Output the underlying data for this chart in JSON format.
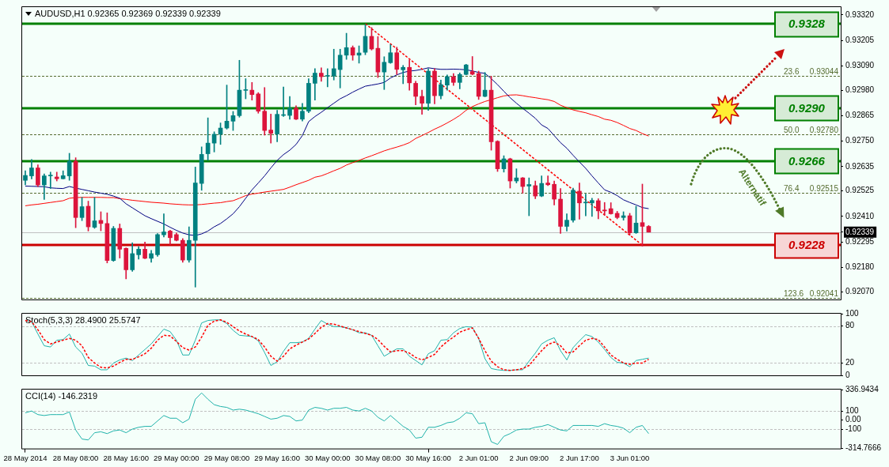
{
  "chart_data": [
    {
      "type": "candlestick",
      "title": "AUDUSD,H1 0.92365 0.92369 0.92339 0.92339",
      "categories": [
        null,
        null,
        null,
        null,
        null,
        null,
        null,
        null,
        null,
        null,
        null,
        null,
        null,
        null,
        null,
        null,
        null,
        null,
        null,
        null,
        null,
        null,
        null,
        null,
        null,
        null,
        null,
        null,
        null,
        null,
        null,
        null,
        null,
        null,
        null,
        null,
        null,
        null,
        null,
        null,
        null,
        null,
        null,
        null,
        null,
        null,
        null,
        null,
        null,
        null,
        null,
        null,
        null,
        null,
        null,
        null,
        null,
        null,
        null,
        null,
        null,
        null,
        null,
        null,
        null,
        null,
        null,
        null,
        null,
        null,
        null,
        null,
        null,
        null,
        null,
        null,
        null,
        null,
        null,
        null,
        null,
        null,
        null,
        null,
        null,
        null,
        null,
        null,
        null,
        null,
        null,
        null,
        null,
        null,
        null,
        null,
        null,
        null,
        null,
        null
      ],
      "ohlc": [
        [
          0.92573,
          0.92616,
          0.92553,
          0.92595
        ],
        [
          0.92593,
          0.92667,
          0.92579,
          0.92629
        ],
        [
          0.92629,
          0.92643,
          0.92545,
          0.92552
        ],
        [
          0.92552,
          0.92602,
          0.92487,
          0.92593
        ],
        [
          0.92593,
          0.9261,
          0.92536,
          0.92593
        ],
        [
          0.92588,
          0.9261,
          0.9257,
          0.9258
        ],
        [
          0.9258,
          0.92616,
          0.92579,
          0.92594
        ],
        [
          0.92593,
          0.92695,
          0.92573,
          0.92659
        ],
        [
          0.92659,
          0.92675,
          0.92359,
          0.92405
        ],
        [
          0.92405,
          0.92496,
          0.92391,
          0.92454
        ],
        [
          0.92456,
          0.92479,
          0.92344,
          0.92363
        ],
        [
          0.92361,
          0.92496,
          0.92356,
          0.9239
        ],
        [
          0.92392,
          0.92431,
          0.92345,
          0.92378
        ],
        [
          0.92378,
          0.92426,
          0.922,
          0.92211
        ],
        [
          0.92211,
          0.92365,
          0.92207,
          0.92356
        ],
        [
          0.92356,
          0.92376,
          0.92222,
          0.92262
        ],
        [
          0.92266,
          0.92268,
          0.92128,
          0.92169
        ],
        [
          0.92169,
          0.92291,
          0.92162,
          0.92242
        ],
        [
          0.92237,
          0.92274,
          0.92217,
          0.92262
        ],
        [
          0.92262,
          0.92294,
          0.92219,
          0.92221
        ],
        [
          0.92221,
          0.92257,
          0.92203,
          0.92242
        ],
        [
          0.92237,
          0.92333,
          0.9223,
          0.92328
        ],
        [
          0.92327,
          0.92422,
          0.92317,
          0.9234
        ],
        [
          0.92344,
          0.92348,
          0.92282,
          0.92314
        ],
        [
          0.92328,
          0.92335,
          0.92299,
          0.92302
        ],
        [
          0.92302,
          0.9231,
          0.92203,
          0.92213
        ],
        [
          0.92213,
          0.92363,
          0.92203,
          0.92302
        ],
        [
          0.92302,
          0.92633,
          0.92091,
          0.92561
        ],
        [
          0.92559,
          0.92724,
          0.92528,
          0.9269
        ],
        [
          0.92693,
          0.92855,
          0.92663,
          0.92741
        ],
        [
          0.92741,
          0.92792,
          0.92701,
          0.92781
        ],
        [
          0.92781,
          0.92832,
          0.92735,
          0.92809
        ],
        [
          0.92809,
          0.93003,
          0.92804,
          0.9284
        ],
        [
          0.9284,
          0.92884,
          0.92798,
          0.92865
        ],
        [
          0.92865,
          0.93115,
          0.92858,
          0.9298
        ],
        [
          0.92979,
          0.93032,
          0.92941,
          0.92979
        ],
        [
          0.9298,
          0.93015,
          0.92935,
          0.9296
        ],
        [
          0.92963,
          0.92969,
          0.92876,
          0.92885
        ],
        [
          0.92885,
          0.92992,
          0.92777,
          0.92798
        ],
        [
          0.928,
          0.92872,
          0.92741,
          0.92785
        ],
        [
          0.92782,
          0.92889,
          0.92747,
          0.92871
        ],
        [
          0.92866,
          0.92994,
          0.92861,
          0.92866
        ],
        [
          0.92866,
          0.92952,
          0.92849,
          0.92899
        ],
        [
          0.92899,
          0.9291,
          0.92847,
          0.92849
        ],
        [
          0.92849,
          0.9292,
          0.92841,
          0.92885
        ],
        [
          0.92885,
          0.93032,
          0.92878,
          0.93011
        ],
        [
          0.93011,
          0.93077,
          0.92935,
          0.93057
        ],
        [
          0.93057,
          0.93081,
          0.9302,
          0.93041
        ],
        [
          0.93043,
          0.93077,
          0.92995,
          0.93043
        ],
        [
          0.93044,
          0.93165,
          0.93026,
          0.93077
        ],
        [
          0.93073,
          0.93165,
          0.9299,
          0.93138
        ],
        [
          0.93138,
          0.93237,
          0.93119,
          0.93172
        ],
        [
          0.93172,
          0.9318,
          0.93115,
          0.93138
        ],
        [
          0.93138,
          0.9318,
          0.93102,
          0.93148
        ],
        [
          0.93151,
          0.93277,
          0.9314,
          0.93223
        ],
        [
          0.93223,
          0.93263,
          0.93161,
          0.93166
        ],
        [
          0.93169,
          0.93222,
          0.93037,
          0.93062
        ],
        [
          0.93062,
          0.93131,
          0.92983,
          0.93106
        ],
        [
          0.93104,
          0.93186,
          0.93101,
          0.93149
        ],
        [
          0.93149,
          0.93174,
          0.93051,
          0.93074
        ],
        [
          0.93072,
          0.93092,
          0.93009,
          0.93083
        ],
        [
          0.93083,
          0.93117,
          0.9298,
          0.93013
        ],
        [
          0.93011,
          0.9302,
          0.92914,
          0.92952
        ],
        [
          0.92952,
          0.9298,
          0.92871,
          0.92921
        ],
        [
          0.92921,
          0.93077,
          0.92889,
          0.93066
        ],
        [
          0.93066,
          0.93077,
          0.92918,
          0.92955
        ],
        [
          0.92955,
          0.93026,
          0.92941,
          0.93005
        ],
        [
          0.93003,
          0.93049,
          0.9298,
          0.93041
        ],
        [
          0.93041,
          0.93055,
          0.93001,
          0.93015
        ],
        [
          0.93015,
          0.93058,
          0.92986,
          0.93051
        ],
        [
          0.93051,
          0.93097,
          0.93049,
          0.93094
        ],
        [
          0.93064,
          0.93132,
          0.93049,
          0.93052
        ],
        [
          0.93055,
          0.93066,
          0.92938,
          0.92952
        ],
        [
          0.92952,
          0.9306,
          0.9295,
          0.9298
        ],
        [
          0.9298,
          0.93043,
          0.92709,
          0.92747
        ],
        [
          0.92749,
          0.92752,
          0.92613,
          0.92625
        ],
        [
          0.92625,
          0.92684,
          0.9261,
          0.9267
        ],
        [
          0.9267,
          0.92673,
          0.92538,
          0.9257
        ],
        [
          0.9257,
          0.92625,
          0.92561,
          0.92584
        ],
        [
          0.92584,
          0.92586,
          0.92515,
          0.92545
        ],
        [
          0.92547,
          0.92584,
          0.92413,
          0.92554
        ],
        [
          0.92549,
          0.9257,
          0.9249,
          0.92502
        ],
        [
          0.92502,
          0.92593,
          0.92499,
          0.92559
        ],
        [
          0.92561,
          0.92593,
          0.92549,
          0.92553
        ],
        [
          0.92555,
          0.9257,
          0.92462,
          0.92488
        ],
        [
          0.92488,
          0.92536,
          0.92333,
          0.92365
        ],
        [
          0.92365,
          0.92422,
          0.92344,
          0.92393
        ],
        [
          0.92393,
          0.92538,
          0.92384,
          0.92528
        ],
        [
          0.92524,
          0.92561,
          0.92397,
          0.92471
        ],
        [
          0.92471,
          0.92511,
          0.92413,
          0.92471
        ],
        [
          0.92471,
          0.92492,
          0.9241,
          0.92482
        ],
        [
          0.92481,
          0.9249,
          0.92399,
          0.92435
        ],
        [
          0.92439,
          0.92473,
          0.92416,
          0.92435
        ],
        [
          0.92445,
          0.92472,
          0.9242,
          0.92422
        ],
        [
          0.92424,
          0.92433,
          0.92399,
          0.92405
        ],
        [
          0.92405,
          0.92431,
          0.92393,
          0.92413
        ],
        [
          0.92413,
          0.92424,
          0.92325,
          0.92336
        ],
        [
          0.92336,
          0.92456,
          0.92333,
          0.9238
        ],
        [
          0.92382,
          0.92556,
          0.92276,
          0.92365
        ],
        [
          0.92365,
          0.92369,
          0.92339,
          0.92339
        ]
      ],
      "colors": [
        "#008080",
        "#008080",
        "#dc143c",
        "#008080",
        "#008080",
        "#dc143c",
        "#008080",
        "#008080",
        "#dc143c",
        "#008080",
        "#dc143c",
        "#008080",
        "#dc143c",
        "#dc143c",
        "#008080",
        "#dc143c",
        "#dc143c",
        "#008080",
        "#008080",
        "#dc143c",
        "#008080",
        "#008080",
        "#008080",
        "#dc143c",
        "#dc143c",
        "#dc143c",
        "#008080",
        "#008080",
        "#008080",
        "#008080",
        "#008080",
        "#008080",
        "#008080",
        "#008080",
        "#008080",
        "#008080",
        "#dc143c",
        "#dc143c",
        "#dc143c",
        "#dc143c",
        "#008080",
        "#008080",
        "#008080",
        "#dc143c",
        "#008080",
        "#008080",
        "#008080",
        "#dc143c",
        "#008080",
        "#008080",
        "#008080",
        "#008080",
        "#dc143c",
        "#008080",
        "#008080",
        "#dc143c",
        "#dc143c",
        "#008080",
        "#008080",
        "#dc143c",
        "#008080",
        "#dc143c",
        "#dc143c",
        "#dc143c",
        "#008080",
        "#dc143c",
        "#008080",
        "#008080",
        "#dc143c",
        "#008080",
        "#008080",
        "#dc143c",
        "#dc143c",
        "#008080",
        "#dc143c",
        "#dc143c",
        "#008080",
        "#dc143c",
        "#008080",
        "#dc143c",
        "#008080",
        "#dc143c",
        "#008080",
        "#dc143c",
        "#dc143c",
        "#dc143c",
        "#008080",
        "#008080",
        "#dc143c",
        "#008080",
        "#008080",
        "#dc143c",
        "#dc143c",
        "#dc143c",
        "#dc143c",
        "#008080",
        "#dc143c",
        "#008080",
        "#dc143c",
        "#dc143c"
      ],
      "series": [
        {
          "type": "line",
          "color": "#000080",
          "values": [
            0.92547,
            0.92546,
            0.92545,
            0.92544,
            0.92539,
            0.92537,
            0.92536,
            0.92545,
            0.92538,
            0.92532,
            0.92526,
            0.9252,
            0.92515,
            0.9251,
            0.92502,
            0.92492,
            0.92467,
            0.92449,
            0.92431,
            0.92413,
            0.924,
            0.92388,
            0.92376,
            0.92361,
            0.92347,
            0.92335,
            0.92327,
            0.92324,
            0.92331,
            0.92344,
            0.92363,
            0.92378,
            0.92399,
            0.92422,
            0.92454,
            0.92492,
            0.9253,
            0.92561,
            0.92593,
            0.92629,
            0.92663,
            0.92689,
            0.92709,
            0.92735,
            0.92775,
            0.92838,
            0.92861,
            0.9288,
            0.92901,
            0.92921,
            0.92941,
            0.92955,
            0.92971,
            0.92985,
            0.92998,
            0.93003,
            0.93008,
            0.93015,
            0.93035,
            0.93049,
            0.9306,
            0.93066,
            0.93069,
            0.93074,
            0.93081,
            0.93077,
            0.93074,
            0.93074,
            0.93075,
            0.93074,
            0.93072,
            0.93067,
            0.9306,
            0.93056,
            0.93032,
            0.93005,
            0.92975,
            0.92946,
            0.92921,
            0.92898,
            0.92876,
            0.92853,
            0.92823,
            0.92807,
            0.92775,
            0.92743,
            0.92718,
            0.92686,
            0.92656,
            0.92627,
            0.92593,
            0.92561,
            0.9253,
            0.92519,
            0.92504,
            0.92485,
            0.92473,
            0.92462,
            0.9245,
            0.92445
          ]
        },
        {
          "type": "line",
          "color": "#ff0000",
          "values": [
            0.92458,
            0.92462,
            0.92465,
            0.92469,
            0.92473,
            0.92477,
            0.92481,
            0.92492,
            0.92495,
            0.92496,
            0.92496,
            0.92496,
            0.92496,
            0.92495,
            0.92495,
            0.9249,
            0.92487,
            0.92483,
            0.9248,
            0.92477,
            0.92474,
            0.92472,
            0.9247,
            0.92467,
            0.92465,
            0.92463,
            0.92462,
            0.92462,
            0.92464,
            0.92467,
            0.9247,
            0.92472,
            0.92477,
            0.92481,
            0.92492,
            0.92504,
            0.92511,
            0.92515,
            0.9252,
            0.92524,
            0.92528,
            0.92532,
            0.92542,
            0.92553,
            0.92563,
            0.92573,
            0.92587,
            0.92593,
            0.92604,
            0.92616,
            0.92627,
            0.92642,
            0.92653,
            0.92663,
            0.92674,
            0.92684,
            0.92695,
            0.92706,
            0.92715,
            0.92723,
            0.92732,
            0.92743,
            0.92762,
            0.92775,
            0.92789,
            0.92804,
            0.92817,
            0.92832,
            0.92848,
            0.92866,
            0.92889,
            0.92906,
            0.92918,
            0.92929,
            0.92937,
            0.92946,
            0.92954,
            0.92958,
            0.92959,
            0.92955,
            0.9295,
            0.92946,
            0.92941,
            0.92937,
            0.92929,
            0.92912,
            0.92901,
            0.92891,
            0.92884,
            0.92878,
            0.92869,
            0.92861,
            0.92849,
            0.92844,
            0.92834,
            0.92821,
            0.92807,
            0.92798,
            0.92784,
            0.92773
          ]
        },
        {
          "type": "line",
          "color": "#ff0000",
          "line_style": "dashed",
          "values": [
            null,
            null,
            null,
            null,
            null,
            null,
            null,
            null,
            null,
            null,
            null,
            null,
            null,
            null,
            null,
            null,
            null,
            null,
            null,
            null,
            null,
            null,
            null,
            null,
            null,
            null,
            null,
            null,
            null,
            null,
            null,
            null,
            null,
            null,
            null,
            null,
            null,
            null,
            null,
            null,
            null,
            null,
            null,
            null,
            null,
            null,
            null,
            null,
            null,
            null,
            null,
            null,
            null,
            null,
            0.9328,
            null,
            null,
            null,
            null,
            null,
            null,
            null,
            null,
            null,
            null,
            null,
            null,
            null,
            null,
            null,
            null,
            null,
            null,
            null,
            null,
            null,
            null,
            null,
            null,
            null,
            null,
            null,
            null,
            null,
            null,
            null,
            null,
            null,
            null,
            null,
            null,
            null,
            null,
            null,
            null,
            null,
            null,
            null,
            0.9228,
            null
          ]
        }
      ],
      "ylim": [
        0.92035,
        0.93355
      ],
      "yticks": [
        {
          "value": 0.9332,
          "label": "0.93320"
        },
        0.93205,
        {
          "value": 0.9309,
          "label": "0.93090"
        },
        {
          "value": 0.9298,
          "label": "0.92980"
        },
        0.92865,
        {
          "value": 0.9275,
          "label": "0.92750"
        },
        0.92635,
        0.92525,
        {
          "value": 0.9241,
          "label": "0.92410"
        },
        0.92295,
        {
          "value": 0.9218,
          "label": "0.92180"
        },
        {
          "value": 0.9207,
          "label": "0.92070"
        },
        0.92339
      ],
      "ref_lines": [
        {
          "axis": "y",
          "value": 0.92339,
          "color": "#c0c0c0"
        },
        {
          "axis": "y",
          "value": 0.93044,
          "label": "23.6 0.93044",
          "color": "#556b2f",
          "line_style": "dashed"
        },
        {
          "axis": "y",
          "value": 0.9278,
          "label": "50.0 0.92780",
          "color": "#556b2f",
          "line_style": "dashed"
        },
        {
          "axis": "y",
          "value": 0.92515,
          "label": "76.4 0.92515",
          "color": "#556b2f",
          "line_style": "dashed"
        },
        {
          "axis": "y",
          "value": 0.92041,
          "label": "123.6 0.92041",
          "color": "#556b2f",
          "line_style": "dashed"
        },
        {
          "axis": "y",
          "value": 0.9328,
          "label": "0.9328",
          "color": "#008000"
        },
        {
          "axis": "y",
          "value": 0.929,
          "label": "0.9290",
          "color": "#008000"
        },
        {
          "axis": "y",
          "value": 0.9266,
          "label": "0.9266",
          "color": "#008000"
        },
        {
          "axis": "y",
          "value": 0.9228,
          "label": "0.9228",
          "color": "#cc0000"
        }
      ],
      "annotations": [
        "Alternatif"
      ],
      "tick_labels": "y"
    },
    {
      "type": "line",
      "title": "Stoch(5,3,3) 28.4900 25.5747",
      "categories": [
        null,
        null,
        null,
        null,
        null,
        null,
        null,
        null,
        null,
        null,
        null,
        null,
        null,
        null,
        null,
        null,
        null,
        null,
        null,
        null,
        null,
        null,
        null,
        null,
        null,
        null,
        null,
        null,
        null,
        null,
        null,
        null,
        null,
        null,
        null,
        null,
        null,
        null,
        null,
        null,
        null,
        null,
        null,
        null,
        null,
        null,
        null,
        null,
        null,
        null,
        null,
        null,
        null,
        null,
        null,
        null,
        null,
        null,
        null,
        null,
        null,
        null,
        null,
        null,
        null,
        null,
        null,
        null,
        null,
        null,
        null,
        null,
        null,
        null,
        null,
        null,
        null,
        null,
        null,
        null,
        null,
        null,
        null,
        null,
        null,
        null,
        null,
        null,
        null,
        null,
        null,
        null,
        null,
        null,
        null,
        null,
        null,
        null,
        null,
        null
      ],
      "series": [
        {
          "color": "#20b2aa",
          "values": [
            89,
            87,
            67,
            48,
            46,
            57,
            58,
            67,
            46,
            36,
            16,
            15,
            9,
            9,
            20,
            25,
            28,
            24,
            33,
            42,
            51,
            63,
            75,
            71,
            57,
            33,
            33,
            57,
            85,
            89,
            90,
            90,
            84,
            73,
            65,
            64,
            63,
            56,
            37,
            16,
            22,
            39,
            53,
            53,
            54,
            60,
            75,
            89,
            83,
            79,
            79,
            77,
            74,
            69,
            69,
            65,
            48,
            31,
            37,
            43,
            43,
            31,
            24,
            17,
            35,
            40,
            57,
            58,
            69,
            76,
            79,
            78,
            60,
            27,
            11,
            9,
            8,
            8,
            9,
            9,
            23,
            36,
            51,
            57,
            61,
            40,
            25,
            45,
            56,
            66,
            63,
            54,
            42,
            29,
            21,
            20,
            14,
            24,
            26,
            28
          ]
        },
        {
          "color": "#ff0000",
          "line_style": "dashed",
          "values": [
            89,
            87,
            74,
            58,
            51,
            54,
            57,
            60,
            57,
            48,
            29,
            20,
            13,
            12,
            15,
            21,
            26,
            26,
            30,
            35,
            44,
            57,
            65,
            64,
            55,
            45,
            41,
            46,
            62,
            81,
            88,
            90,
            86,
            79,
            72,
            67,
            63,
            58,
            46,
            31,
            23,
            31,
            43,
            49,
            54,
            59,
            68,
            78,
            84,
            83,
            80,
            77,
            74,
            71,
            68,
            65,
            58,
            47,
            38,
            40,
            40,
            36,
            29,
            25,
            29,
            34,
            46,
            55,
            62,
            70,
            74,
            77,
            60,
            40,
            23,
            14,
            9,
            8,
            9,
            11,
            16,
            28,
            40,
            50,
            54,
            48,
            36,
            38,
            48,
            57,
            60,
            58,
            46,
            33,
            26,
            20,
            18,
            20,
            20,
            26
          ]
        }
      ],
      "ylim": [
        0,
        100
      ],
      "yticks": [
        100,
        80,
        20,
        0
      ],
      "ref_lines": [
        {
          "axis": "y",
          "value": 80,
          "color": "#c0c0c0",
          "line_style": "dashed"
        },
        {
          "axis": "y",
          "value": 20,
          "color": "#c0c0c0",
          "line_style": "dashed"
        }
      ],
      "tick_labels": "y"
    },
    {
      "type": "line",
      "title": "CCI(14) -146.2319",
      "categories": [
        "28 May 2014",
        null,
        null,
        null,
        null,
        null,
        null,
        null,
        "28 May 08:00",
        null,
        null,
        null,
        null,
        null,
        null,
        null,
        "28 May 16:00",
        null,
        null,
        null,
        null,
        null,
        null,
        null,
        "29 May 00:00",
        null,
        null,
        null,
        null,
        null,
        null,
        null,
        "29 May 08:00",
        null,
        null,
        null,
        null,
        null,
        null,
        null,
        "29 May 16:00",
        null,
        null,
        null,
        null,
        null,
        null,
        null,
        "30 May 00:00",
        null,
        null,
        null,
        null,
        null,
        null,
        null,
        "30 May 08:00",
        null,
        null,
        null,
        null,
        null,
        null,
        null,
        "30 May 16:00",
        null,
        null,
        null,
        null,
        null,
        null,
        null,
        "2 Jun 01:00",
        null,
        null,
        null,
        null,
        null,
        null,
        null,
        "2 Jun 09:00",
        null,
        null,
        null,
        null,
        null,
        null,
        null,
        "2 Jun 17:00",
        null,
        null,
        null,
        null,
        null,
        null,
        null,
        "3 Jun 01:00",
        null,
        null,
        null
      ],
      "series": [
        {
          "color": "#20b2aa",
          "values": [
            80,
            100,
            60,
            50,
            60,
            60,
            60,
            90,
            -110,
            -210,
            -220,
            -140,
            -130,
            -150,
            -120,
            -110,
            -140,
            -100,
            -80,
            -70,
            -70,
            -10,
            50,
            20,
            20,
            -30,
            10,
            230,
            300,
            230,
            170,
            150,
            140,
            110,
            120,
            110,
            90,
            70,
            40,
            10,
            20,
            50,
            40,
            -10,
            0,
            110,
            140,
            130,
            110,
            130,
            130,
            140,
            110,
            100,
            130,
            100,
            30,
            -10,
            50,
            -10,
            -70,
            -110,
            -200,
            -190,
            -80,
            -80,
            -60,
            -30,
            -20,
            20,
            80,
            70,
            -40,
            -30,
            -240,
            -270,
            -180,
            -150,
            -110,
            -100,
            -100,
            -80,
            -70,
            -50,
            -80,
            -110,
            -120,
            -60,
            -60,
            -60,
            -60,
            -70,
            -40,
            -60,
            -70,
            -90,
            -140,
            -80,
            -60,
            -150
          ]
        }
      ],
      "ylim": [
        -314.7666,
        336.9434
      ],
      "yticks": [
        336.9434,
        100,
        {
          "value": 0,
          "label": "0.00"
        },
        -100,
        -314.7666
      ],
      "ref_lines": [
        {
          "axis": "y",
          "value": 100,
          "color": "#c0c0c0",
          "line_style": "dashed"
        },
        {
          "axis": "y",
          "value": -100,
          "color": "#c0c0c0",
          "line_style": "dashed"
        }
      ]
    }
  ]
}
